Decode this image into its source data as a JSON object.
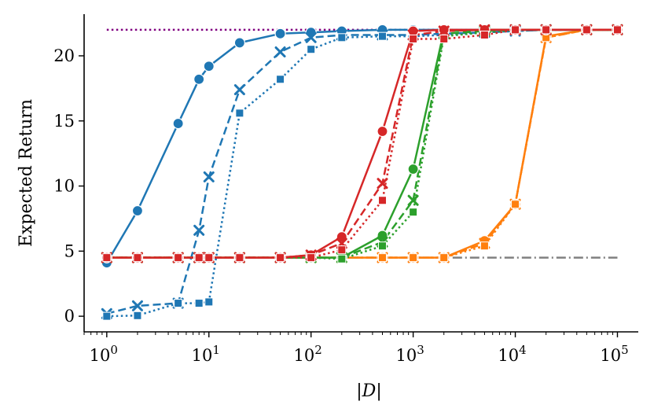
{
  "chart_data": {
    "type": "line",
    "title": "",
    "xlabel": "|D|",
    "ylabel": "Expected Return",
    "xscale": "log",
    "xlim": [
      0.6,
      160000
    ],
    "ylim": [
      -1.2,
      23.2
    ],
    "grid": false,
    "legend": "none",
    "x_ticks": [
      {
        "value": 1,
        "base": "10",
        "exp": "0"
      },
      {
        "value": 10,
        "base": "10",
        "exp": "1"
      },
      {
        "value": 100,
        "base": "10",
        "exp": "2"
      },
      {
        "value": 1000,
        "base": "10",
        "exp": "3"
      },
      {
        "value": 10000,
        "base": "10",
        "exp": "4"
      },
      {
        "value": 100000,
        "base": "10",
        "exp": "5"
      }
    ],
    "y_ticks": [
      {
        "value": 0,
        "label": "0"
      },
      {
        "value": 5,
        "label": "5"
      },
      {
        "value": 10,
        "label": "10"
      },
      {
        "value": 15,
        "label": "15"
      },
      {
        "value": 20,
        "label": "20"
      }
    ],
    "reference_lines": [
      {
        "name": "expert-reference",
        "y": 22.0,
        "color": "#800080",
        "dash": "dotted"
      },
      {
        "name": "random-reference",
        "y": 4.5,
        "color": "#808080",
        "dash": "dashdot"
      }
    ],
    "series": [
      {
        "name": "blue-circle",
        "color": "#1f77b4",
        "dash": "solid",
        "marker": "circle",
        "x": [
          1,
          2,
          5,
          8,
          10,
          20,
          50,
          100,
          200,
          500,
          1000,
          2000,
          5000,
          10000,
          20000,
          50000,
          100000
        ],
        "y": [
          4.1,
          8.1,
          14.8,
          18.2,
          19.2,
          21.0,
          21.7,
          21.8,
          21.9,
          22.0,
          22.0,
          22.0,
          22.0,
          22.0,
          22.0,
          22.0,
          22.0
        ]
      },
      {
        "name": "blue-x",
        "color": "#1f77b4",
        "dash": "dashed",
        "marker": "x",
        "x": [
          1,
          2,
          5,
          8,
          10,
          20,
          50,
          100,
          200,
          500,
          1000,
          2000,
          5000,
          10000,
          20000,
          50000,
          100000
        ],
        "y": [
          0.2,
          0.8,
          1.0,
          6.6,
          10.7,
          17.4,
          20.3,
          21.4,
          21.6,
          21.6,
          21.6,
          21.7,
          21.8,
          21.9,
          22.0,
          22.0,
          22.0
        ]
      },
      {
        "name": "blue-square",
        "color": "#1f77b4",
        "dash": "dotted",
        "marker": "square",
        "x": [
          1,
          2,
          5,
          8,
          10,
          20,
          50,
          100,
          200,
          500,
          1000,
          2000,
          5000,
          10000,
          20000,
          50000,
          100000
        ],
        "y": [
          0.0,
          0.05,
          1.0,
          1.0,
          1.1,
          15.6,
          18.2,
          20.5,
          21.4,
          21.5,
          21.5,
          21.6,
          21.8,
          21.9,
          22.0,
          22.0,
          22.0
        ]
      },
      {
        "name": "orange-circle",
        "color": "#ff7f0e",
        "dash": "solid",
        "marker": "circle",
        "x": [
          1,
          2,
          5,
          8,
          10,
          20,
          50,
          100,
          200,
          500,
          1000,
          2000,
          5000,
          10000,
          20000,
          50000,
          100000
        ],
        "y": [
          4.5,
          4.5,
          4.5,
          4.5,
          4.5,
          4.5,
          4.5,
          4.5,
          4.5,
          4.5,
          4.5,
          4.5,
          5.8,
          8.6,
          21.5,
          22.0,
          22.0
        ]
      },
      {
        "name": "orange-x",
        "color": "#ff7f0e",
        "dash": "dashed",
        "marker": "x",
        "x": [
          1,
          2,
          5,
          8,
          10,
          20,
          50,
          100,
          200,
          500,
          1000,
          2000,
          5000,
          10000,
          20000,
          50000,
          100000
        ],
        "y": [
          4.5,
          4.5,
          4.5,
          4.5,
          4.5,
          4.5,
          4.5,
          4.5,
          4.5,
          4.5,
          4.5,
          4.5,
          5.6,
          8.6,
          21.4,
          22.0,
          22.0
        ]
      },
      {
        "name": "orange-square",
        "color": "#ff7f0e",
        "dash": "dotted",
        "marker": "square",
        "x": [
          1,
          2,
          5,
          8,
          10,
          20,
          50,
          100,
          200,
          500,
          1000,
          2000,
          5000,
          10000,
          20000,
          50000,
          100000
        ],
        "y": [
          4.5,
          4.5,
          4.5,
          4.5,
          4.5,
          4.5,
          4.5,
          4.5,
          4.5,
          4.5,
          4.5,
          4.5,
          5.4,
          8.6,
          21.4,
          22.0,
          22.0
        ]
      },
      {
        "name": "green-circle",
        "color": "#2ca02c",
        "dash": "solid",
        "marker": "circle",
        "x": [
          1,
          2,
          5,
          8,
          10,
          20,
          50,
          100,
          200,
          500,
          1000,
          2000,
          5000,
          10000,
          20000,
          50000,
          100000
        ],
        "y": [
          4.5,
          4.5,
          4.5,
          4.5,
          4.5,
          4.5,
          4.5,
          4.5,
          4.5,
          6.2,
          11.3,
          21.9,
          22.0,
          22.0,
          22.0,
          22.0,
          22.0
        ]
      },
      {
        "name": "green-x",
        "color": "#2ca02c",
        "dash": "dashed",
        "marker": "x",
        "x": [
          1,
          2,
          5,
          8,
          10,
          20,
          50,
          100,
          200,
          500,
          1000,
          2000,
          5000,
          10000,
          20000,
          50000,
          100000
        ],
        "y": [
          4.5,
          4.5,
          4.5,
          4.5,
          4.5,
          4.5,
          4.5,
          4.5,
          4.5,
          5.7,
          8.9,
          21.7,
          21.9,
          22.0,
          22.0,
          22.0,
          22.0
        ]
      },
      {
        "name": "green-square",
        "color": "#2ca02c",
        "dash": "dotted",
        "marker": "square",
        "x": [
          1,
          2,
          5,
          8,
          10,
          20,
          50,
          100,
          200,
          500,
          1000,
          2000,
          5000,
          10000,
          20000,
          50000,
          100000
        ],
        "y": [
          4.5,
          4.5,
          4.5,
          4.5,
          4.5,
          4.5,
          4.5,
          4.5,
          4.4,
          5.4,
          8.0,
          21.5,
          21.8,
          22.0,
          22.0,
          22.0,
          22.0
        ]
      },
      {
        "name": "red-circle",
        "color": "#d62728",
        "dash": "solid",
        "marker": "circle",
        "x": [
          1,
          2,
          5,
          8,
          10,
          20,
          50,
          100,
          200,
          500,
          1000,
          2000,
          5000,
          10000,
          20000,
          50000,
          100000
        ],
        "y": [
          4.5,
          4.5,
          4.5,
          4.5,
          4.5,
          4.5,
          4.5,
          4.7,
          6.1,
          14.2,
          21.9,
          22.0,
          22.0,
          22.0,
          22.0,
          22.0,
          22.0
        ]
      },
      {
        "name": "red-x",
        "color": "#d62728",
        "dash": "dashed",
        "marker": "x",
        "x": [
          1,
          2,
          5,
          8,
          10,
          20,
          50,
          100,
          200,
          500,
          1000,
          2000,
          5000,
          10000,
          20000,
          50000,
          100000
        ],
        "y": [
          4.5,
          4.5,
          4.5,
          4.5,
          4.5,
          4.5,
          4.5,
          4.7,
          5.6,
          10.2,
          21.6,
          21.9,
          22.0,
          22.0,
          22.0,
          22.0,
          22.0
        ]
      },
      {
        "name": "red-square",
        "color": "#d62728",
        "dash": "dotted",
        "marker": "square",
        "x": [
          1,
          2,
          5,
          8,
          10,
          20,
          50,
          100,
          200,
          500,
          1000,
          2000,
          5000,
          10000,
          20000,
          50000,
          100000
        ],
        "y": [
          4.5,
          4.5,
          4.5,
          4.5,
          4.5,
          4.5,
          4.5,
          4.5,
          5.1,
          8.9,
          21.3,
          21.3,
          21.6,
          22.0,
          22.0,
          22.0,
          22.0
        ]
      }
    ]
  }
}
